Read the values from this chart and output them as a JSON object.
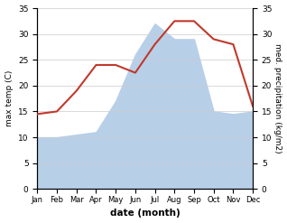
{
  "months": [
    "Jan",
    "Feb",
    "Mar",
    "Apr",
    "May",
    "Jun",
    "Jul",
    "Aug",
    "Sep",
    "Oct",
    "Nov",
    "Dec"
  ],
  "temp": [
    14.5,
    15.0,
    19.0,
    24.0,
    24.0,
    22.5,
    28.0,
    32.5,
    32.5,
    29.0,
    28.0,
    16.0
  ],
  "precip": [
    10.0,
    10.0,
    10.5,
    11.0,
    17.0,
    26.0,
    32.0,
    29.0,
    29.0,
    15.0,
    14.5,
    15.0
  ],
  "temp_color": "#c0392b",
  "precip_color": "#b8cfe8",
  "ylim_temp": [
    0,
    35
  ],
  "ylim_precip": [
    0,
    35
  ],
  "yticks_temp": [
    0,
    5,
    10,
    15,
    20,
    25,
    30,
    35
  ],
  "yticks_precip": [
    0,
    5,
    10,
    15,
    20,
    25,
    30,
    35
  ],
  "ylabel_left": "max temp (C)",
  "ylabel_right": "med. precipitation (kg/m2)",
  "xlabel": "date (month)",
  "bg_color": "#ffffff",
  "grid_color": "#cccccc"
}
